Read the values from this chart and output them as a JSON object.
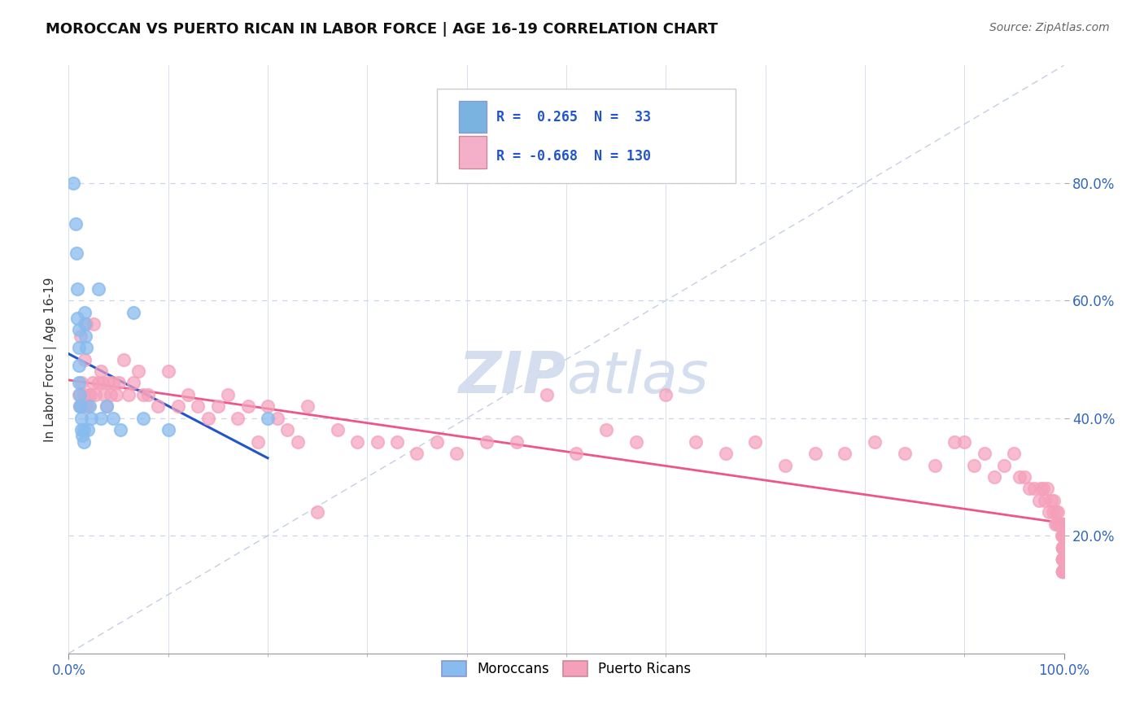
{
  "title": "MOROCCAN VS PUERTO RICAN IN LABOR FORCE | AGE 16-19 CORRELATION CHART",
  "source_text": "Source: ZipAtlas.com",
  "ylabel": "In Labor Force | Age 16-19",
  "moroccan_color": "#88bbee",
  "puerto_rican_color": "#f5a0bb",
  "trend_moroccan_color": "#2255cc",
  "trend_puerto_rican_color": "#ee5588",
  "diagonal_color": "#c5cfe0",
  "background_color": "#ffffff",
  "grid_color": "#ccd5e5",
  "legend_box_color": "#7ab3e0",
  "legend_box_color2": "#f4b0c8",
  "watermark_color": "#d0dbee",
  "moroccan_R": 0.265,
  "moroccan_N": 33,
  "puerto_rican_R": -0.668,
  "puerto_rican_N": 130,
  "moroccan_x": [
    0.005,
    0.007,
    0.008,
    0.009,
    0.009,
    0.01,
    0.01,
    0.01,
    0.01,
    0.011,
    0.011,
    0.012,
    0.013,
    0.013,
    0.014,
    0.015,
    0.015,
    0.016,
    0.016,
    0.017,
    0.018,
    0.019,
    0.021,
    0.023,
    0.03,
    0.032,
    0.038,
    0.045,
    0.052,
    0.065,
    0.075,
    0.1,
    0.2
  ],
  "moroccan_y": [
    0.8,
    0.73,
    0.68,
    0.62,
    0.57,
    0.55,
    0.52,
    0.49,
    0.46,
    0.44,
    0.42,
    0.42,
    0.4,
    0.38,
    0.37,
    0.38,
    0.36,
    0.58,
    0.56,
    0.54,
    0.52,
    0.38,
    0.42,
    0.4,
    0.62,
    0.4,
    0.42,
    0.4,
    0.38,
    0.58,
    0.4,
    0.38,
    0.4
  ],
  "puerto_rican_x": [
    0.01,
    0.011,
    0.012,
    0.013,
    0.014,
    0.015,
    0.016,
    0.017,
    0.018,
    0.019,
    0.02,
    0.022,
    0.024,
    0.025,
    0.027,
    0.03,
    0.032,
    0.034,
    0.036,
    0.038,
    0.04,
    0.042,
    0.045,
    0.048,
    0.05,
    0.055,
    0.06,
    0.065,
    0.07,
    0.075,
    0.08,
    0.09,
    0.1,
    0.11,
    0.12,
    0.13,
    0.14,
    0.15,
    0.16,
    0.17,
    0.18,
    0.19,
    0.2,
    0.21,
    0.22,
    0.23,
    0.24,
    0.25,
    0.27,
    0.29,
    0.31,
    0.33,
    0.35,
    0.37,
    0.39,
    0.42,
    0.45,
    0.48,
    0.51,
    0.54,
    0.57,
    0.6,
    0.63,
    0.66,
    0.69,
    0.72,
    0.75,
    0.78,
    0.81,
    0.84,
    0.87,
    0.89,
    0.9,
    0.91,
    0.92,
    0.93,
    0.94,
    0.95,
    0.955,
    0.96,
    0.965,
    0.97,
    0.975,
    0.977,
    0.979,
    0.981,
    0.983,
    0.985,
    0.987,
    0.989,
    0.99,
    0.991,
    0.992,
    0.993,
    0.994,
    0.995,
    0.996,
    0.997,
    0.998,
    0.999,
    0.999,
    0.999,
    0.999,
    0.999,
    0.999,
    0.999,
    0.999,
    0.999,
    0.999,
    0.999,
    0.999,
    0.999,
    0.999,
    0.999,
    0.999,
    0.999,
    0.999,
    0.999,
    0.999,
    0.999,
    0.999,
    0.999,
    0.999,
    0.999,
    0.999,
    0.999,
    0.999,
    0.999,
    0.999,
    0.999
  ],
  "puerto_rican_y": [
    0.44,
    0.42,
    0.54,
    0.46,
    0.42,
    0.44,
    0.5,
    0.42,
    0.56,
    0.42,
    0.44,
    0.44,
    0.46,
    0.56,
    0.44,
    0.46,
    0.48,
    0.46,
    0.44,
    0.42,
    0.46,
    0.44,
    0.46,
    0.44,
    0.46,
    0.5,
    0.44,
    0.46,
    0.48,
    0.44,
    0.44,
    0.42,
    0.48,
    0.42,
    0.44,
    0.42,
    0.4,
    0.42,
    0.44,
    0.4,
    0.42,
    0.36,
    0.42,
    0.4,
    0.38,
    0.36,
    0.42,
    0.24,
    0.38,
    0.36,
    0.36,
    0.36,
    0.34,
    0.36,
    0.34,
    0.36,
    0.36,
    0.44,
    0.34,
    0.38,
    0.36,
    0.44,
    0.36,
    0.34,
    0.36,
    0.32,
    0.34,
    0.34,
    0.36,
    0.34,
    0.32,
    0.36,
    0.36,
    0.32,
    0.34,
    0.3,
    0.32,
    0.34,
    0.3,
    0.3,
    0.28,
    0.28,
    0.26,
    0.28,
    0.28,
    0.26,
    0.28,
    0.24,
    0.26,
    0.24,
    0.26,
    0.22,
    0.24,
    0.22,
    0.24,
    0.22,
    0.22,
    0.22,
    0.2,
    0.22,
    0.2,
    0.22,
    0.2,
    0.22,
    0.2,
    0.18,
    0.2,
    0.18,
    0.18,
    0.16,
    0.18,
    0.18,
    0.16,
    0.18,
    0.18,
    0.16,
    0.16,
    0.14,
    0.16,
    0.14,
    0.14,
    0.16,
    0.14,
    0.16,
    0.14,
    0.16,
    0.14,
    0.16,
    0.14,
    0.14
  ],
  "xlim": [
    0.0,
    1.0
  ],
  "ylim": [
    0.0,
    1.0
  ],
  "yticks": [
    0.2,
    0.4,
    0.6,
    0.8
  ],
  "ytick_labels": [
    "20.0%",
    "40.0%",
    "60.0%",
    "80.0%"
  ],
  "xtick_labels": [
    "0.0%",
    "100.0%"
  ]
}
